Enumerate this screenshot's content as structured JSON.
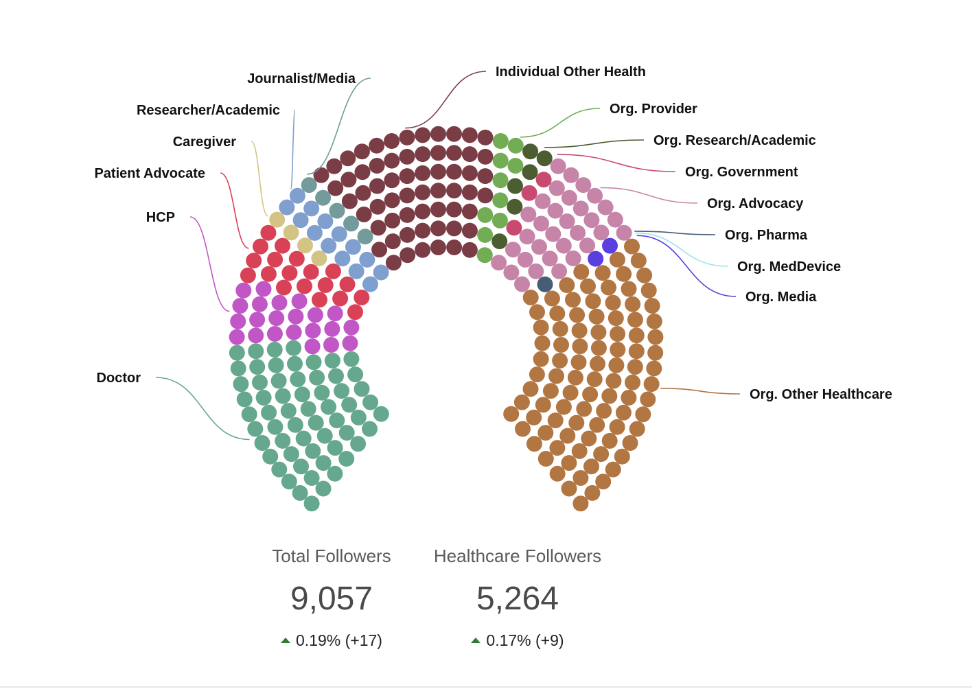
{
  "chart_data": {
    "type": "parliament",
    "unit_dots": 336,
    "series": [
      {
        "name": "Doctor",
        "count": 60,
        "color": "#66a88e"
      },
      {
        "name": "HCP",
        "count": 22,
        "color": "#c156c7"
      },
      {
        "name": "Patient Advocate",
        "count": 19,
        "color": "#d94157"
      },
      {
        "name": "Caregiver",
        "count": 4,
        "color": "#d3c486"
      },
      {
        "name": "Researcher/Academic",
        "count": 14,
        "color": "#7f9fcf"
      },
      {
        "name": "Journalist/Media",
        "count": 5,
        "color": "#739b9b"
      },
      {
        "name": "Individual Other Health",
        "count": 62,
        "color": "#7a3d45"
      },
      {
        "name": "Org. Provider",
        "count": 10,
        "color": "#72ad56"
      },
      {
        "name": "Org. Research/Academic",
        "count": 6,
        "color": "#4c5d31"
      },
      {
        "name": "Org. Government",
        "count": 3,
        "color": "#c94a70"
      },
      {
        "name": "Org. Advocacy",
        "count": 32,
        "color": "#c685a8"
      },
      {
        "name": "Org. Pharma",
        "count": 1,
        "color": "#485d75"
      },
      {
        "name": "Org. MedDevice",
        "count": 0,
        "color": "#9ee1ea"
      },
      {
        "name": "Org. Media",
        "count": 2,
        "color": "#5a3ee0"
      },
      {
        "name": "Org. Other Healthcare",
        "count": 96,
        "color": "#b17642"
      }
    ]
  },
  "stats": {
    "total": {
      "title": "Total Followers",
      "value": "9,057",
      "change": "0.19% (+17)"
    },
    "healthcare": {
      "title": "Healthcare Followers",
      "value": "5,264",
      "change": "0.17% (+9)"
    }
  },
  "colors": {
    "positive": "#2e7d32"
  }
}
